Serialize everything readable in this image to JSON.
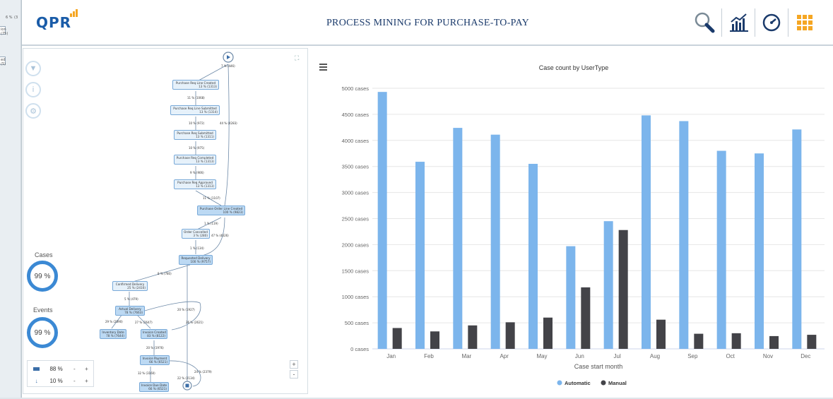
{
  "background_app": {
    "fragments": [
      "6 %",
      "(3",
      "ion",
      "(75)",
      "ed",
      "(5)"
    ]
  },
  "header": {
    "logo_text": "QPR",
    "title": "PROCESS MINING FOR PURCHASE-TO-PAY",
    "icons": [
      "search-icon",
      "chart-analytics-icon",
      "dashboard-gauge-icon",
      "apps-grid-icon"
    ],
    "accent_color": "#f5a623",
    "brand_color": "#1a5ca8"
  },
  "process_panel": {
    "side_buttons": [
      "filter-icon",
      "info-icon",
      "settings-icon"
    ],
    "expand_icon": "expand-icon",
    "start_label": "7 % (446)",
    "nodes": [
      {
        "name": "Purchase Req Line Created",
        "value": "13 % (1313)"
      },
      {
        "name": "Purchase Req Line Submitted",
        "value": "13 % (1314)"
      },
      {
        "name": "Purchase Req Submitted",
        "value": "13 % (1311)"
      },
      {
        "name": "Purchase Req Completed",
        "value": "13 % (1313)"
      },
      {
        "name": "Purchase Req Approved",
        "value": "13 % (1313)"
      },
      {
        "name": "Purchase Order Line Created",
        "value": "100 % (9823)"
      },
      {
        "name": "Order Cancelled",
        "value": "3 % (280)"
      },
      {
        "name": "Requested Delivery",
        "value": "100 % (9757)"
      },
      {
        "name": "Confirmed Delivery",
        "value": "25 % (2416)"
      },
      {
        "name": "Actual Delivery",
        "value": "78 % (7663)"
      },
      {
        "name": "Inventory Date",
        "value": "78 % (7644)"
      },
      {
        "name": "Invoice Created",
        "value": "83 % (8122)"
      },
      {
        "name": "Invoice Payment",
        "value": "66 % (6521)"
      },
      {
        "name": "Invoice Due Date",
        "value": "66 % (6521)"
      }
    ],
    "edges": [
      "11 % (1068)",
      "10 % (972)",
      "44 % (4283)",
      "10 % (975)",
      "9 % (906)",
      "11 % (1107)",
      "1 % (119)",
      "47 % (4626)",
      "1 % (134)",
      "8 % (780)",
      "5 % (479)",
      "20 % (1927)",
      "29 % (2890)",
      "27 % (2647)",
      "26 % (2621)",
      "20 % (1976)",
      "32 % (3160)",
      "24 % (2379)",
      "22 % (2134)"
    ],
    "cases_label": "Cases",
    "cases_value": "99 %",
    "events_label": "Events",
    "events_value": "99 %",
    "filter_rows": [
      {
        "icon": "bar-icon",
        "value": "88 %"
      },
      {
        "icon": "down-arrow-icon",
        "value": "10 %"
      }
    ],
    "minus": "-",
    "plus": "+",
    "zoom_in": "+",
    "zoom_out": "-"
  },
  "chart_panel": {
    "menu_icon": "hamburger-menu-icon"
  },
  "chart_data": {
    "type": "bar",
    "title": "Case count by UserType",
    "xlabel": "Case start month",
    "ylabel": "",
    "categories": [
      "Jan",
      "Feb",
      "Mar",
      "Apr",
      "May",
      "Jun",
      "Jul",
      "Aug",
      "Sep",
      "Oct",
      "Nov",
      "Dec"
    ],
    "series": [
      {
        "name": "Automatic",
        "color": "#7cb5ec",
        "values": [
          4930,
          3590,
          4240,
          4110,
          3550,
          1970,
          2450,
          4480,
          4370,
          3800,
          3750,
          4210
        ]
      },
      {
        "name": "Manual",
        "color": "#434348",
        "values": [
          400,
          335,
          450,
          510,
          600,
          1180,
          2280,
          560,
          290,
          300,
          245,
          270
        ]
      }
    ],
    "ylim": [
      0,
      5000
    ],
    "yticks": [
      "0 cases",
      "500 cases",
      "1000 cases",
      "1500 cases",
      "2000 cases",
      "2500 cases",
      "3000 cases",
      "3500 cases",
      "4000 cases",
      "4500 cases",
      "5000 cases"
    ],
    "grid": true,
    "legend": "bottom-center"
  }
}
